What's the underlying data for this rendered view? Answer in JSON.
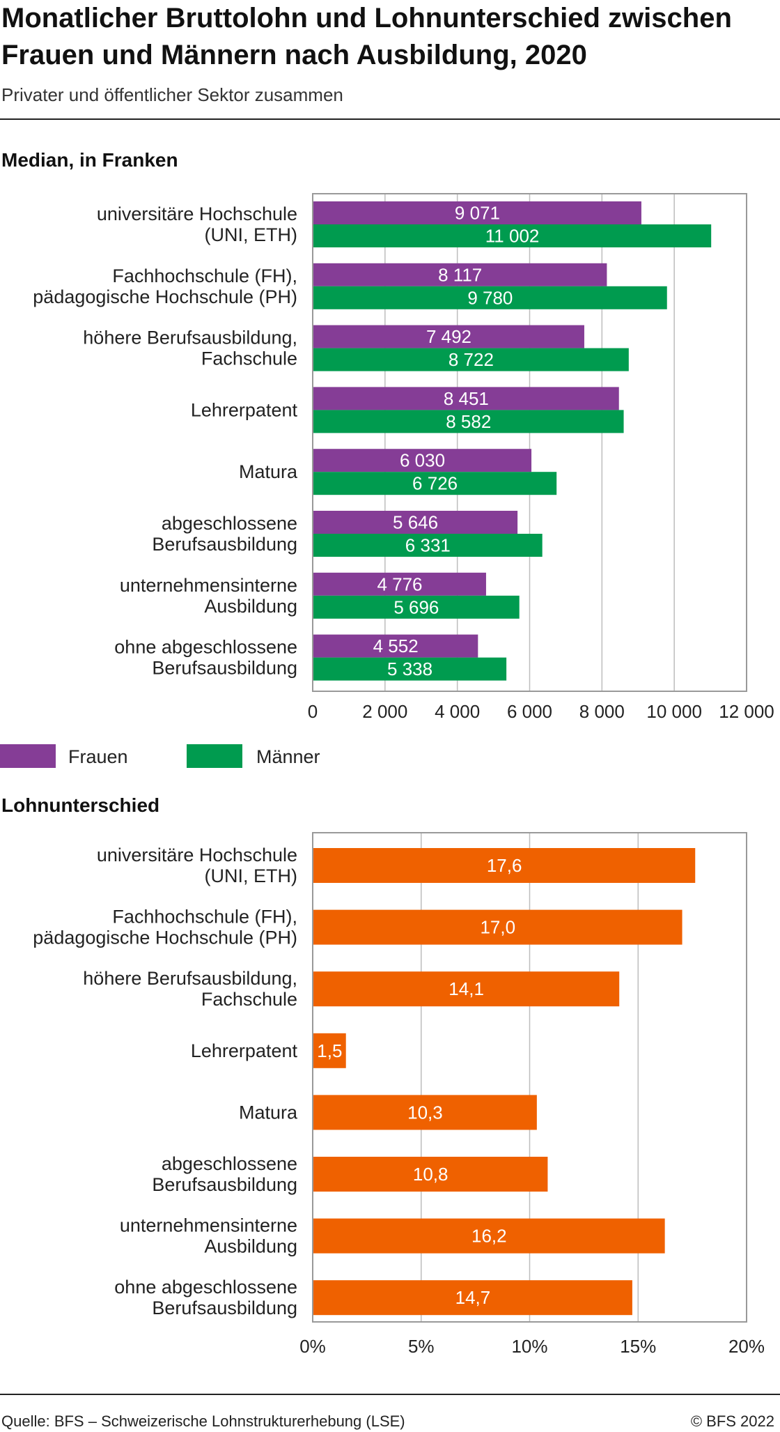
{
  "header": {
    "title": "Monatlicher Bruttolohn und Lohnunterschied zwischen Frauen und Männern nach Ausbildung, 2020",
    "subtitle": "Privater und öffentlicher Sektor zusammen"
  },
  "colors": {
    "frauen": "#853d96",
    "maenner": "#009b4f",
    "gap": "#ef6100",
    "axis": "#999999",
    "grid": "#bdbdbd"
  },
  "chart_data": [
    {
      "type": "bar",
      "orientation": "horizontal",
      "title": "Median, in Franken",
      "categories": [
        [
          "universitäre Hochschule",
          "(UNI, ETH)"
        ],
        [
          "Fachhochschule (FH),",
          "pädagogische Hochschule (PH)"
        ],
        [
          "höhere Berufsausbildung,",
          "Fachschule"
        ],
        [
          "Lehrerpatent"
        ],
        [
          "Matura"
        ],
        [
          "abgeschlossene",
          "Berufsausbildung"
        ],
        [
          "unternehmensinterne",
          "Ausbildung"
        ],
        [
          "ohne abgeschlossene",
          "Berufsausbildung"
        ]
      ],
      "series": [
        {
          "name": "Frauen",
          "values": [
            9071,
            8117,
            7492,
            8451,
            6030,
            5646,
            4776,
            4552
          ],
          "labels": [
            "9 071",
            "8 117",
            "7 492",
            "8 451",
            "6 030",
            "5 646",
            "4 776",
            "4 552"
          ]
        },
        {
          "name": "Männer",
          "values": [
            11002,
            9780,
            8722,
            8582,
            6726,
            6331,
            5696,
            5338
          ],
          "labels": [
            "11 002",
            "9 780",
            "8 722",
            "8 582",
            "6 726",
            "6 331",
            "5 696",
            "5 338"
          ]
        }
      ],
      "xlim": [
        0,
        12000
      ],
      "ticks": [
        0,
        2000,
        4000,
        6000,
        8000,
        10000,
        12000
      ],
      "tick_labels": [
        "0",
        "2 000",
        "4 000",
        "6 000",
        "8 000",
        "10 000",
        "12 000"
      ],
      "grid": true,
      "legend": "bottom-left"
    },
    {
      "type": "bar",
      "orientation": "horizontal",
      "title": "Lohnunterschied",
      "categories": [
        [
          "universitäre Hochschule",
          "(UNI, ETH)"
        ],
        [
          "Fachhochschule (FH),",
          "pädagogische Hochschule (PH)"
        ],
        [
          "höhere Berufsausbildung,",
          "Fachschule"
        ],
        [
          "Lehrerpatent"
        ],
        [
          "Matura"
        ],
        [
          "abgeschlossene",
          "Berufsausbildung"
        ],
        [
          "unternehmensinterne",
          "Ausbildung"
        ],
        [
          "ohne abgeschlossene",
          "Berufsausbildung"
        ]
      ],
      "series": [
        {
          "values": [
            17.6,
            17.0,
            14.1,
            1.5,
            10.3,
            10.8,
            16.2,
            14.7
          ],
          "labels": [
            "17,6",
            "17,0",
            "14,1",
            "1,5",
            "10,3",
            "10,8",
            "16,2",
            "14,7"
          ]
        }
      ],
      "xlim": [
        0,
        20
      ],
      "ticks": [
        0,
        5,
        10,
        15,
        20
      ],
      "tick_labels": [
        "0%",
        "5%",
        "10%",
        "15%",
        "20%"
      ],
      "grid": true
    }
  ],
  "legend": {
    "items": [
      {
        "label": "Frauen"
      },
      {
        "label": "Männer"
      }
    ]
  },
  "footer": {
    "source": "Quelle: BFS – Schweizerische Lohnstrukturerhebung (LSE)",
    "copyright": "© BFS 2022"
  }
}
